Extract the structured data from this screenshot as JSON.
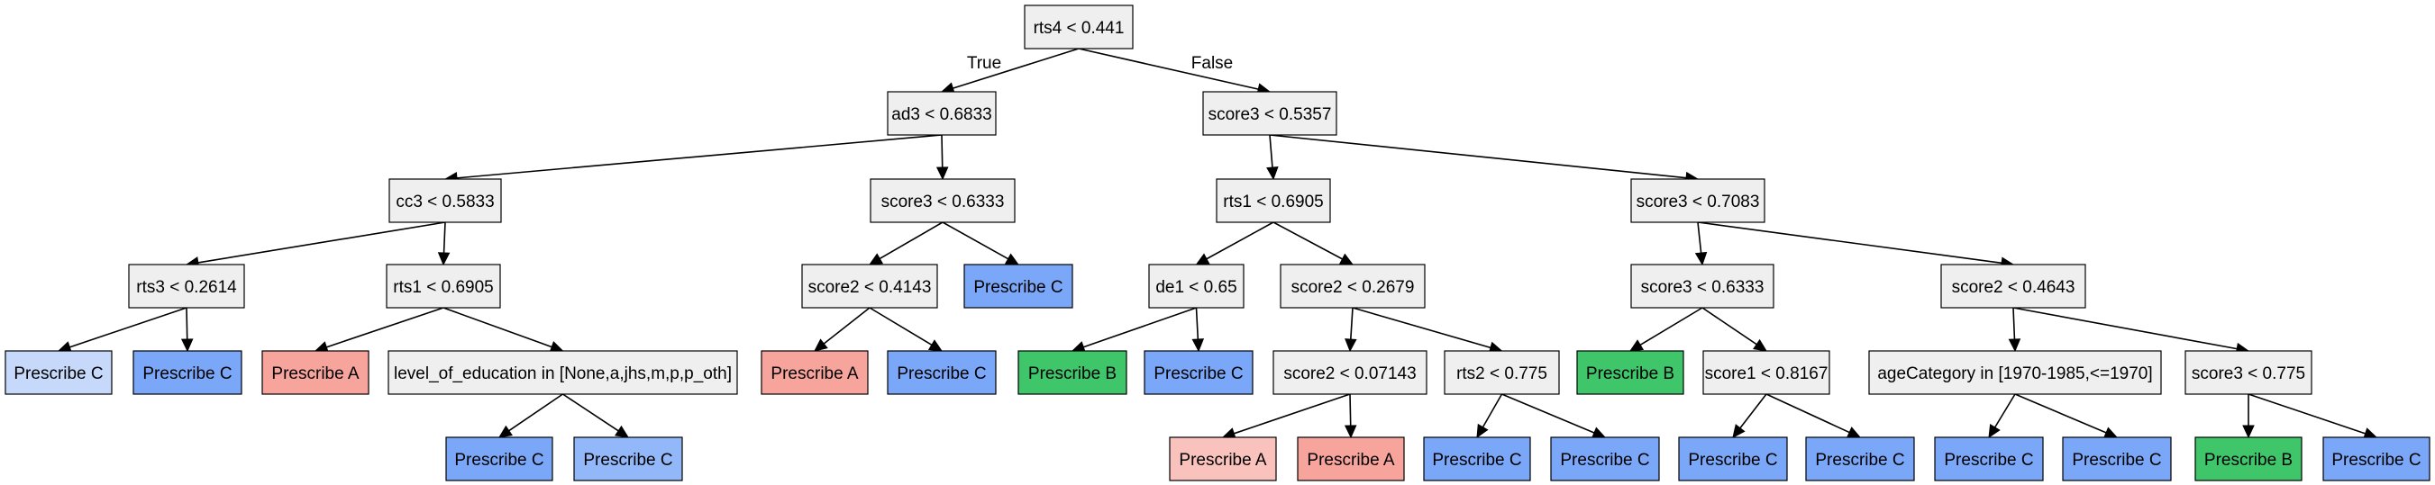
{
  "colors": {
    "split": "#efefef",
    "prescribe_a": "#f7a49c",
    "prescribe_a_light": "#f9c2bd",
    "prescribe_b": "#40c66a",
    "prescribe_c": "#7aa7f7",
    "prescribe_c_light": "#c6d9fb",
    "prescribe_c_medium": "#93b8fa",
    "edge": "#000000"
  },
  "nodes": {
    "n0": "rts4 < 0.441",
    "n1": "ad3 < 0.6833",
    "n2": "score3 < 0.5357",
    "n3": "cc3 < 0.5833",
    "n4": "score3 < 0.6333",
    "n5": "rts1 < 0.6905",
    "n6": "score3 < 0.7083",
    "n7": "rts3 < 0.2614",
    "n8": "rts1 < 0.6905",
    "n9": "score2 < 0.4143",
    "n10": "Prescribe C",
    "n11": "de1 < 0.65",
    "n12": "score2 < 0.2679",
    "n13": "score3 < 0.6333",
    "n14": "score2 < 0.4643",
    "n15": "Prescribe C",
    "n16": "Prescribe C",
    "n17": "Prescribe A",
    "n18": "level_of_education in [None,a,jhs,m,p,p_oth]",
    "n19": "Prescribe A",
    "n20": "Prescribe C",
    "n21": "Prescribe B",
    "n22": "Prescribe C",
    "n23": "score2 < 0.07143",
    "n24": "rts2 < 0.775",
    "n25": "Prescribe B",
    "n26": "score1 < 0.8167",
    "n27": "ageCategory in [1970-1985,<=1970]",
    "n28": "score3 < 0.775",
    "n29": "Prescribe C",
    "n30": "Prescribe C",
    "n31": "Prescribe A",
    "n32": "Prescribe A",
    "n33": "Prescribe C",
    "n34": "Prescribe C",
    "n35": "Prescribe C",
    "n36": "Prescribe C",
    "n37": "Prescribe C",
    "n38": "Prescribe C",
    "n39": "Prescribe B",
    "n40": "Prescribe C"
  },
  "node_colors": {
    "n0": "split",
    "n1": "split",
    "n2": "split",
    "n3": "split",
    "n4": "split",
    "n5": "split",
    "n6": "split",
    "n7": "split",
    "n8": "split",
    "n9": "split",
    "n10": "prescribe_c",
    "n11": "split",
    "n12": "split",
    "n13": "split",
    "n14": "split",
    "n15": "prescribe_c_light",
    "n16": "prescribe_c",
    "n17": "prescribe_a",
    "n18": "split",
    "n19": "prescribe_a",
    "n20": "prescribe_c",
    "n21": "prescribe_b",
    "n22": "prescribe_c",
    "n23": "split",
    "n24": "split",
    "n25": "prescribe_b",
    "n26": "split",
    "n27": "split",
    "n28": "split",
    "n29": "prescribe_c",
    "n30": "prescribe_c_medium",
    "n31": "prescribe_a_light",
    "n32": "prescribe_a",
    "n33": "prescribe_c",
    "n34": "prescribe_c",
    "n35": "prescribe_c",
    "n36": "prescribe_c",
    "n37": "prescribe_c",
    "n38": "prescribe_c",
    "n39": "prescribe_b",
    "n40": "prescribe_c"
  },
  "edges": [
    [
      "n0",
      "n1"
    ],
    [
      "n0",
      "n2"
    ],
    [
      "n1",
      "n3"
    ],
    [
      "n1",
      "n4"
    ],
    [
      "n2",
      "n5"
    ],
    [
      "n2",
      "n6"
    ],
    [
      "n3",
      "n7"
    ],
    [
      "n3",
      "n8"
    ],
    [
      "n4",
      "n9"
    ],
    [
      "n4",
      "n10"
    ],
    [
      "n5",
      "n11"
    ],
    [
      "n5",
      "n12"
    ],
    [
      "n6",
      "n13"
    ],
    [
      "n6",
      "n14"
    ],
    [
      "n7",
      "n15"
    ],
    [
      "n7",
      "n16"
    ],
    [
      "n8",
      "n17"
    ],
    [
      "n8",
      "n18"
    ],
    [
      "n9",
      "n19"
    ],
    [
      "n9",
      "n20"
    ],
    [
      "n11",
      "n21"
    ],
    [
      "n11",
      "n22"
    ],
    [
      "n12",
      "n23"
    ],
    [
      "n12",
      "n24"
    ],
    [
      "n13",
      "n25"
    ],
    [
      "n13",
      "n26"
    ],
    [
      "n14",
      "n27"
    ],
    [
      "n14",
      "n28"
    ],
    [
      "n18",
      "n29"
    ],
    [
      "n18",
      "n30"
    ],
    [
      "n23",
      "n31"
    ],
    [
      "n23",
      "n32"
    ],
    [
      "n24",
      "n33"
    ],
    [
      "n24",
      "n34"
    ],
    [
      "n26",
      "n35"
    ],
    [
      "n26",
      "n36"
    ],
    [
      "n27",
      "n37"
    ],
    [
      "n27",
      "n38"
    ],
    [
      "n28",
      "n39"
    ],
    [
      "n28",
      "n40"
    ]
  ],
  "edge_labels": {
    "true_label": "True",
    "false_label": "False"
  }
}
